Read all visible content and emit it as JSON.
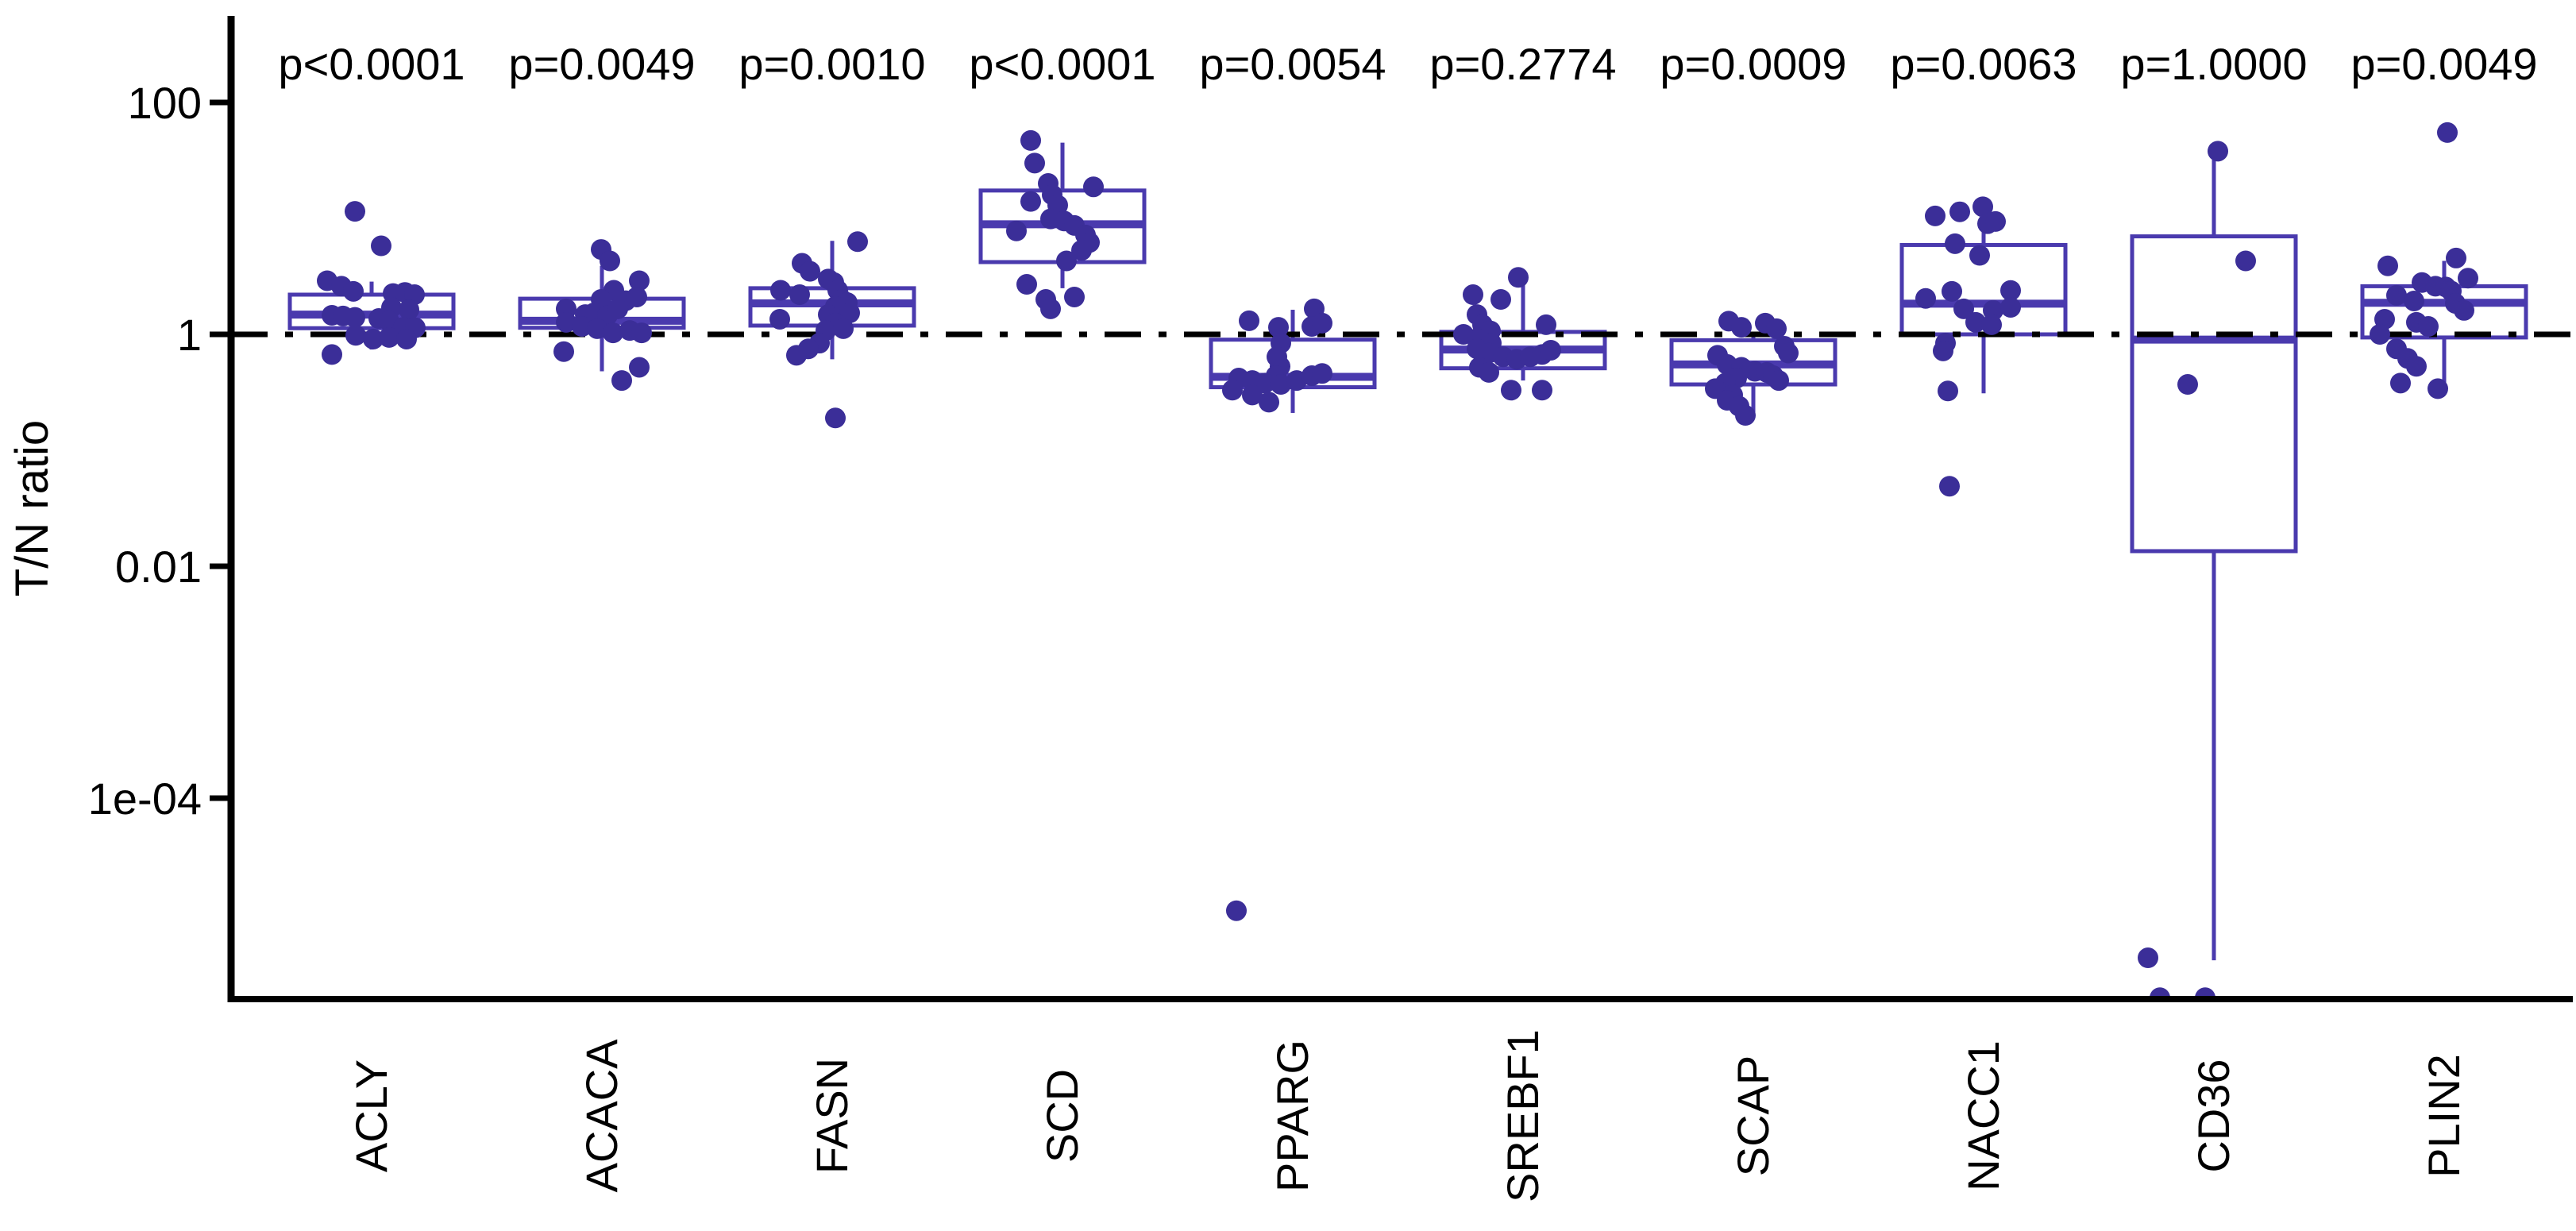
{
  "chart_data": {
    "type": "boxplot",
    "subtype": "box-and-jitter-points, log10 y scale",
    "title": "",
    "xlabel": "",
    "ylabel": "T/N ratio",
    "y_scale": "log10",
    "ylim": [
      2e-06,
      500
    ],
    "grid": "off",
    "y_ticks": [
      {
        "label": "100",
        "value": 100
      },
      {
        "label": "1",
        "value": 1
      },
      {
        "label": "0.01",
        "value": 0.01
      },
      {
        "label": "1e-04",
        "value": 0.0001
      }
    ],
    "reference_line": {
      "value": 1,
      "style": "dash-dot",
      "color": "#000000"
    },
    "colors": {
      "box_stroke": "#4a3aae",
      "point_fill": "#3b2e98",
      "axis": "#000000",
      "text": "#000000",
      "background": "#ffffff"
    },
    "categories": [
      {
        "label": "ACLY",
        "p": "p<0.0001",
        "box": {
          "whisker_lo": 0.74,
          "q1": 1.13,
          "median": 1.48,
          "q3": 2.2,
          "whisker_hi": 2.85
        },
        "points": [
          [
            -21,
            11.5
          ],
          [
            12,
            5.8
          ],
          [
            -56,
            2.9
          ],
          [
            -38,
            2.6
          ],
          [
            -23,
            2.35
          ],
          [
            27,
            2.25
          ],
          [
            42,
            2.3
          ],
          [
            54,
            2.2
          ],
          [
            25,
            1.7
          ],
          [
            47,
            1.63
          ],
          [
            -50,
            1.46
          ],
          [
            -36,
            1.44
          ],
          [
            -21,
            1.4
          ],
          [
            9,
            1.37
          ],
          [
            22,
            1.3
          ],
          [
            40,
            1.15
          ],
          [
            55,
            1.14
          ],
          [
            -20,
            0.98
          ],
          [
            2,
            0.91
          ],
          [
            22,
            0.94
          ],
          [
            44,
            0.91
          ],
          [
            -50,
            0.67
          ]
        ]
      },
      {
        "label": "ACACA",
        "p": "p=0.0049",
        "box": {
          "whisker_lo": 0.48,
          "q1": 1.14,
          "median": 1.31,
          "q3": 2.03,
          "whisker_hi": 3.9
        },
        "points": [
          [
            -1,
            5.4
          ],
          [
            10,
            4.3
          ],
          [
            47,
            2.9
          ],
          [
            15,
            2.4
          ],
          [
            -1,
            2.0
          ],
          [
            30,
            1.95
          ],
          [
            44,
            2.1
          ],
          [
            -45,
            1.66
          ],
          [
            -21,
            1.48
          ],
          [
            -10,
            1.53
          ],
          [
            7,
            1.46
          ],
          [
            20,
            1.66
          ],
          [
            -45,
            1.27
          ],
          [
            -25,
            1.17
          ],
          [
            -6,
            1.12
          ],
          [
            14,
            1.03
          ],
          [
            35,
            1.08
          ],
          [
            50,
            1.03
          ],
          [
            -48,
            0.71
          ],
          [
            25,
            0.4
          ],
          [
            47,
            0.52
          ]
        ]
      },
      {
        "label": "FASN",
        "p": "p=0.0010",
        "box": {
          "whisker_lo": 0.61,
          "q1": 1.19,
          "median": 1.85,
          "q3": 2.5,
          "whisker_hi": 6.4
        },
        "points": [
          [
            32,
            6.3
          ],
          [
            -38,
            4.1
          ],
          [
            -28,
            3.5
          ],
          [
            -5,
            3.0
          ],
          [
            2,
            2.8
          ],
          [
            7,
            2.4
          ],
          [
            12,
            2.0
          ],
          [
            19,
            1.88
          ],
          [
            4,
            1.74
          ],
          [
            -65,
            2.4
          ],
          [
            -41,
            2.2
          ],
          [
            -5,
            1.48
          ],
          [
            9,
            1.42
          ],
          [
            22,
            1.53
          ],
          [
            -66,
            1.35
          ],
          [
            4,
            1.25
          ],
          [
            -8,
            1.08
          ],
          [
            14,
            1.12
          ],
          [
            -16,
            0.84
          ],
          [
            -30,
            0.75
          ],
          [
            -45,
            0.66
          ],
          [
            4,
            0.19
          ]
        ]
      },
      {
        "label": "SCD",
        "p": "p<0.0001",
        "box": {
          "whisker_lo": 2.5,
          "q1": 4.2,
          "median": 8.9,
          "q3": 17.4,
          "whisker_hi": 45
        },
        "points": [
          [
            -40,
            47
          ],
          [
            -35,
            30
          ],
          [
            -18,
            20
          ],
          [
            39,
            18.7
          ],
          [
            -13,
            16
          ],
          [
            -40,
            14
          ],
          [
            -6,
            13
          ],
          [
            -15,
            9.9
          ],
          [
            2,
            9.5
          ],
          [
            15,
            8.7
          ],
          [
            -58,
            7.8
          ],
          [
            29,
            7.2
          ],
          [
            34,
            6.2
          ],
          [
            24,
            5.3
          ],
          [
            5,
            4.3
          ],
          [
            -45,
            2.7
          ],
          [
            -21,
            2.0
          ],
          [
            -15,
            1.66
          ],
          [
            15,
            2.1
          ]
        ]
      },
      {
        "label": "PPARG",
        "p": "p=0.0054",
        "box": {
          "whisker_lo": 0.21,
          "q1": 0.35,
          "median": 0.43,
          "q3": 0.9,
          "whisker_hi": 1.63
        },
        "points": [
          [
            27,
            1.66
          ],
          [
            -55,
            1.31
          ],
          [
            -18,
            1.15
          ],
          [
            24,
            1.17
          ],
          [
            37,
            1.25
          ],
          [
            -15,
            0.84
          ],
          [
            -20,
            0.64
          ],
          [
            -16,
            0.53
          ],
          [
            -21,
            0.44
          ],
          [
            -68,
            0.42
          ],
          [
            -51,
            0.4
          ],
          [
            -35,
            0.38
          ],
          [
            -15,
            0.37
          ],
          [
            5,
            0.4
          ],
          [
            24,
            0.44
          ],
          [
            37,
            0.46
          ],
          [
            -76,
            0.33
          ],
          [
            -51,
            0.3
          ],
          [
            -30,
            0.26
          ],
          [
            -71,
            1.07e-05
          ]
        ]
      },
      {
        "label": "SREBF1",
        "p": "p=0.2774",
        "box": {
          "whisker_lo": 0.4,
          "q1": 0.51,
          "median": 0.74,
          "q3": 1.05,
          "whisker_hi": 3.0
        },
        "points": [
          [
            -6,
            3.1
          ],
          [
            -63,
            2.2
          ],
          [
            -28,
            2.0
          ],
          [
            -58,
            1.48
          ],
          [
            -51,
            1.21
          ],
          [
            29,
            1.21
          ],
          [
            -41,
            1.07
          ],
          [
            -75,
            1.0
          ],
          [
            -58,
            0.92
          ],
          [
            -40,
            0.84
          ],
          [
            -58,
            0.75
          ],
          [
            -43,
            0.69
          ],
          [
            -25,
            0.64
          ],
          [
            -8,
            0.61
          ],
          [
            9,
            0.64
          ],
          [
            24,
            0.67
          ],
          [
            35,
            0.73
          ],
          [
            -55,
            0.52
          ],
          [
            -43,
            0.47
          ],
          [
            -15,
            0.33
          ],
          [
            24,
            0.33
          ]
        ]
      },
      {
        "label": "SCAP",
        "p": "p=0.0009",
        "box": {
          "whisker_lo": 0.2,
          "q1": 0.37,
          "median": 0.55,
          "q3": 0.89,
          "whisker_hi": 1.05
        },
        "points": [
          [
            -31,
            1.3
          ],
          [
            -15,
            1.15
          ],
          [
            15,
            1.25
          ],
          [
            29,
            1.12
          ],
          [
            39,
            0.79
          ],
          [
            44,
            0.69
          ],
          [
            -45,
            0.66
          ],
          [
            -33,
            0.55
          ],
          [
            -15,
            0.52
          ],
          [
            2,
            0.48
          ],
          [
            17,
            0.47
          ],
          [
            25,
            0.44
          ],
          [
            32,
            0.4
          ],
          [
            -21,
            0.42
          ],
          [
            -35,
            0.38
          ],
          [
            -48,
            0.34
          ],
          [
            -26,
            0.3
          ],
          [
            -33,
            0.27
          ],
          [
            -18,
            0.24
          ],
          [
            -10,
            0.2
          ]
        ]
      },
      {
        "label": "NACC1",
        "p": "p=0.0063",
        "box": {
          "whisker_lo": 0.31,
          "q1": 1.0,
          "median": 1.84,
          "q3": 5.9,
          "whisker_hi": 12.0
        },
        "points": [
          [
            -1,
            12.6
          ],
          [
            -30,
            11.4
          ],
          [
            -61,
            10.5
          ],
          [
            5,
            9.0
          ],
          [
            15,
            9.4
          ],
          [
            -36,
            6.05
          ],
          [
            -5,
            4.8
          ],
          [
            -73,
            2.04
          ],
          [
            -40,
            2.35
          ],
          [
            34,
            2.39
          ],
          [
            -25,
            1.66
          ],
          [
            12,
            1.61
          ],
          [
            34,
            1.71
          ],
          [
            -10,
            1.27
          ],
          [
            10,
            1.21
          ],
          [
            -48,
            0.84
          ],
          [
            -51,
            0.72
          ],
          [
            -45,
            0.325
          ],
          [
            -43,
            0.049
          ]
        ]
      },
      {
        "label": "CD36",
        "p": "p=1.0000",
        "box": {
          "whisker_lo": 4e-06,
          "q1": 0.0135,
          "median": 0.9,
          "q3": 7.0,
          "whisker_hi": 33
        },
        "points": [
          [
            5,
            38
          ],
          [
            40,
            4.3
          ],
          [
            -33,
            0.37
          ],
          [
            -83,
            4.2e-06
          ],
          [
            -68,
            1.9e-06
          ],
          [
            -11,
            1.9e-06
          ]
        ]
      },
      {
        "label": "PLIN2",
        "p": "p=0.0049",
        "box": {
          "whisker_lo": 0.37,
          "q1": 0.94,
          "median": 1.87,
          "q3": 2.6,
          "whisker_hi": 4.3
        },
        "points": [
          [
            4,
            55
          ],
          [
            15,
            4.55
          ],
          [
            -71,
            3.9
          ],
          [
            30,
            3.05
          ],
          [
            -28,
            2.8
          ],
          [
            -11,
            2.6
          ],
          [
            2,
            2.56
          ],
          [
            9,
            2.36
          ],
          [
            -60,
            2.17
          ],
          [
            -38,
            1.94
          ],
          [
            14,
            1.85
          ],
          [
            25,
            1.61
          ],
          [
            -75,
            1.35
          ],
          [
            -35,
            1.27
          ],
          [
            -20,
            1.17
          ],
          [
            -81,
            1.0
          ],
          [
            -60,
            0.75
          ],
          [
            -46,
            0.62
          ],
          [
            -35,
            0.53
          ],
          [
            -55,
            0.38
          ],
          [
            -8,
            0.34
          ]
        ]
      }
    ]
  }
}
